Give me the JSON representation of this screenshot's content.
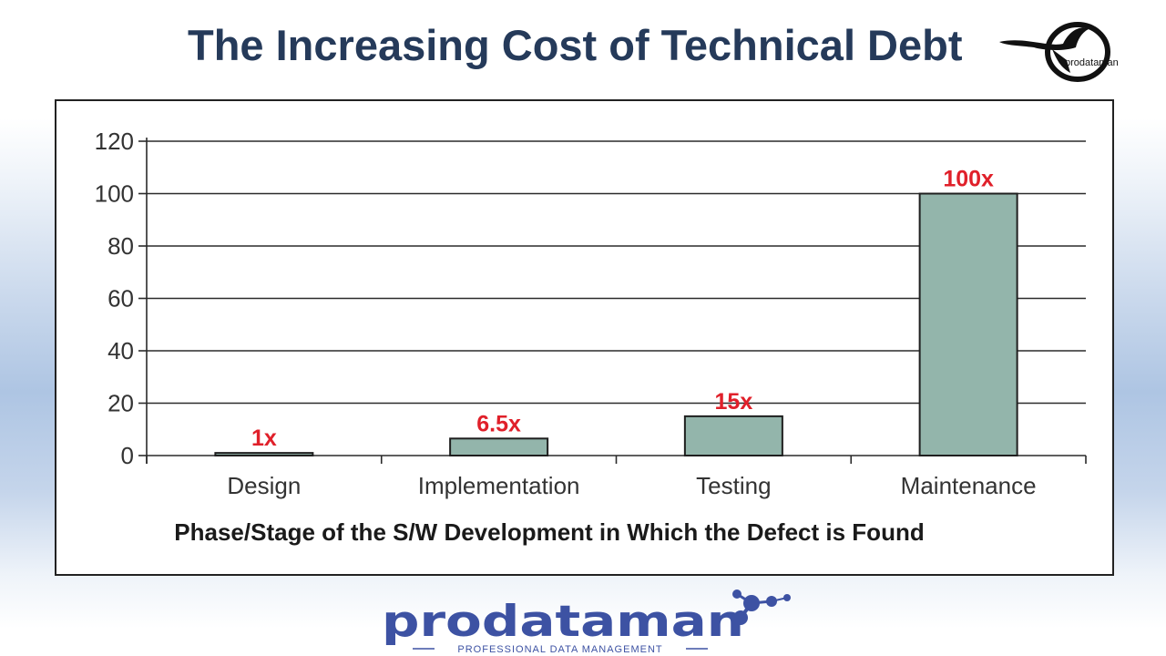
{
  "slide": {
    "title": "The Increasing Cost of Technical Debt"
  },
  "corner_logo": {
    "text": "prodataman",
    "icon": "bird-circle-logo-icon"
  },
  "brand_logo": {
    "wordmark": "prodataman",
    "tagline": "PROFESSIONAL DATA MANAGEMENT",
    "color": "#3d52a3"
  },
  "colors": {
    "title": "#253a5a",
    "bar_fill": "#93b5ab",
    "bar_stroke": "#1f1f1f",
    "data_label": "#e0202a",
    "axis_text": "#333333"
  },
  "chart_data": {
    "type": "bar",
    "categories": [
      "Design",
      "Implementation",
      "Testing",
      "Maintenance"
    ],
    "values": [
      1,
      6.5,
      15,
      100
    ],
    "data_labels": [
      "1x",
      "6.5x",
      "15x",
      "100x"
    ],
    "xlabel": "Phase/Stage of the S/W Development in Which the Defect is Found",
    "ylabel": "",
    "ylim": [
      0,
      120
    ],
    "yticks": [
      0,
      20,
      40,
      60,
      80,
      100,
      120
    ],
    "grid": true,
    "legend": "none"
  }
}
